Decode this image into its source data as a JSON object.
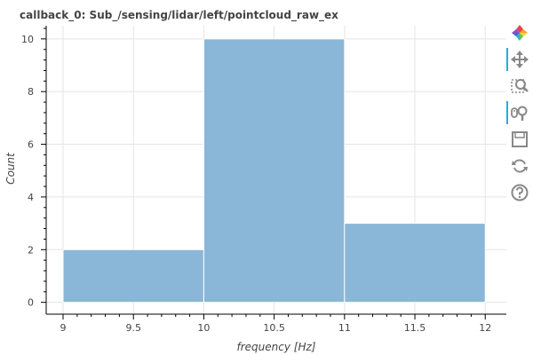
{
  "chart_data": {
    "type": "bar",
    "title": "callback_0: Sub_/sensing/lidar/left/pointcloud_raw_ex",
    "xlabel": "frequency [Hz]",
    "ylabel": "Count",
    "bins": [
      {
        "left": 9,
        "right": 10,
        "count": 2
      },
      {
        "left": 10,
        "right": 11,
        "count": 10
      },
      {
        "left": 11,
        "right": 12,
        "count": 3
      }
    ],
    "xlim": [
      8.88,
      12.15
    ],
    "ylim": [
      -0.45,
      10.5
    ],
    "xticks": [
      9,
      9.5,
      10,
      10.5,
      11,
      11.5,
      12
    ],
    "xtick_labels": [
      "9",
      "9.5",
      "10",
      "10.5",
      "11",
      "11.5",
      "12"
    ],
    "yticks": [
      0,
      2,
      4,
      6,
      8,
      10
    ],
    "ytick_labels": [
      "0",
      "2",
      "4",
      "6",
      "8",
      "10"
    ],
    "bar_color": "#8ab7d8",
    "bar_edge_color": "#ffffff",
    "grid": true
  },
  "toolbar": {
    "tools": [
      {
        "name": "bokeh-logo-icon",
        "active": false
      },
      {
        "name": "pan-icon",
        "active": true
      },
      {
        "name": "box-zoom-icon",
        "active": false
      },
      {
        "name": "wheel-zoom-icon",
        "active": true
      },
      {
        "name": "save-icon",
        "active": false
      },
      {
        "name": "reset-icon",
        "active": false
      },
      {
        "name": "help-icon",
        "active": false
      }
    ]
  }
}
